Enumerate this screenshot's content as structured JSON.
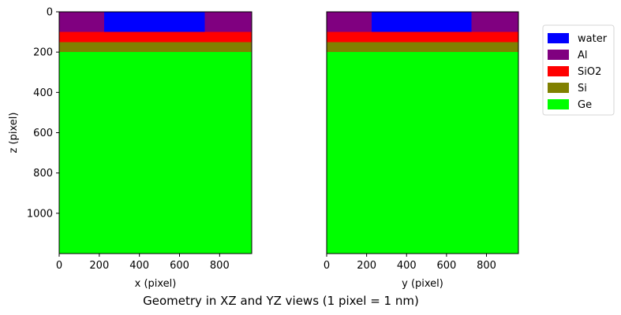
{
  "figure": {
    "suptitle": "Geometry in XZ and YZ views (1 pixel = 1 nm)"
  },
  "chart_data": {
    "type": "heatmap",
    "materials": [
      {
        "name": "water",
        "color": "#0000ff"
      },
      {
        "name": "Al",
        "color": "#800080"
      },
      {
        "name": "SiO2",
        "color": "#ff0000"
      },
      {
        "name": "Si",
        "color": "#808000"
      },
      {
        "name": "Ge",
        "color": "#00ff00"
      }
    ],
    "legend_position": "right",
    "panels": [
      {
        "xlabel": "x (pixel)",
        "ylabel": "z (pixel)",
        "xlim": [
          0,
          960
        ],
        "ylim": [
          1200,
          0
        ],
        "xticks": [
          0,
          200,
          400,
          600,
          800
        ],
        "yticks": [
          0,
          200,
          400,
          600,
          800,
          1000
        ],
        "regions": [
          {
            "material": "Al",
            "x": [
              0,
              960
            ],
            "z": [
              0,
              100
            ]
          },
          {
            "material": "water",
            "x": [
              225,
              725
            ],
            "z": [
              0,
              100
            ]
          },
          {
            "material": "SiO2",
            "x": [
              0,
              960
            ],
            "z": [
              100,
              150
            ]
          },
          {
            "material": "Si",
            "x": [
              0,
              960
            ],
            "z": [
              150,
              200
            ]
          },
          {
            "material": "Ge",
            "x": [
              0,
              960
            ],
            "z": [
              200,
              1200
            ]
          }
        ]
      },
      {
        "xlabel": "y (pixel)",
        "ylabel": "",
        "xlim": [
          0,
          960
        ],
        "ylim": [
          1200,
          0
        ],
        "xticks": [
          0,
          200,
          400,
          600,
          800
        ],
        "yticks": [],
        "regions": [
          {
            "material": "Al",
            "x": [
              0,
              960
            ],
            "z": [
              0,
              100
            ]
          },
          {
            "material": "water",
            "x": [
              225,
              725
            ],
            "z": [
              0,
              100
            ]
          },
          {
            "material": "SiO2",
            "x": [
              0,
              960
            ],
            "z": [
              100,
              150
            ]
          },
          {
            "material": "Si",
            "x": [
              0,
              960
            ],
            "z": [
              150,
              200
            ]
          },
          {
            "material": "Ge",
            "x": [
              0,
              960
            ],
            "z": [
              200,
              1200
            ]
          }
        ]
      }
    ]
  }
}
